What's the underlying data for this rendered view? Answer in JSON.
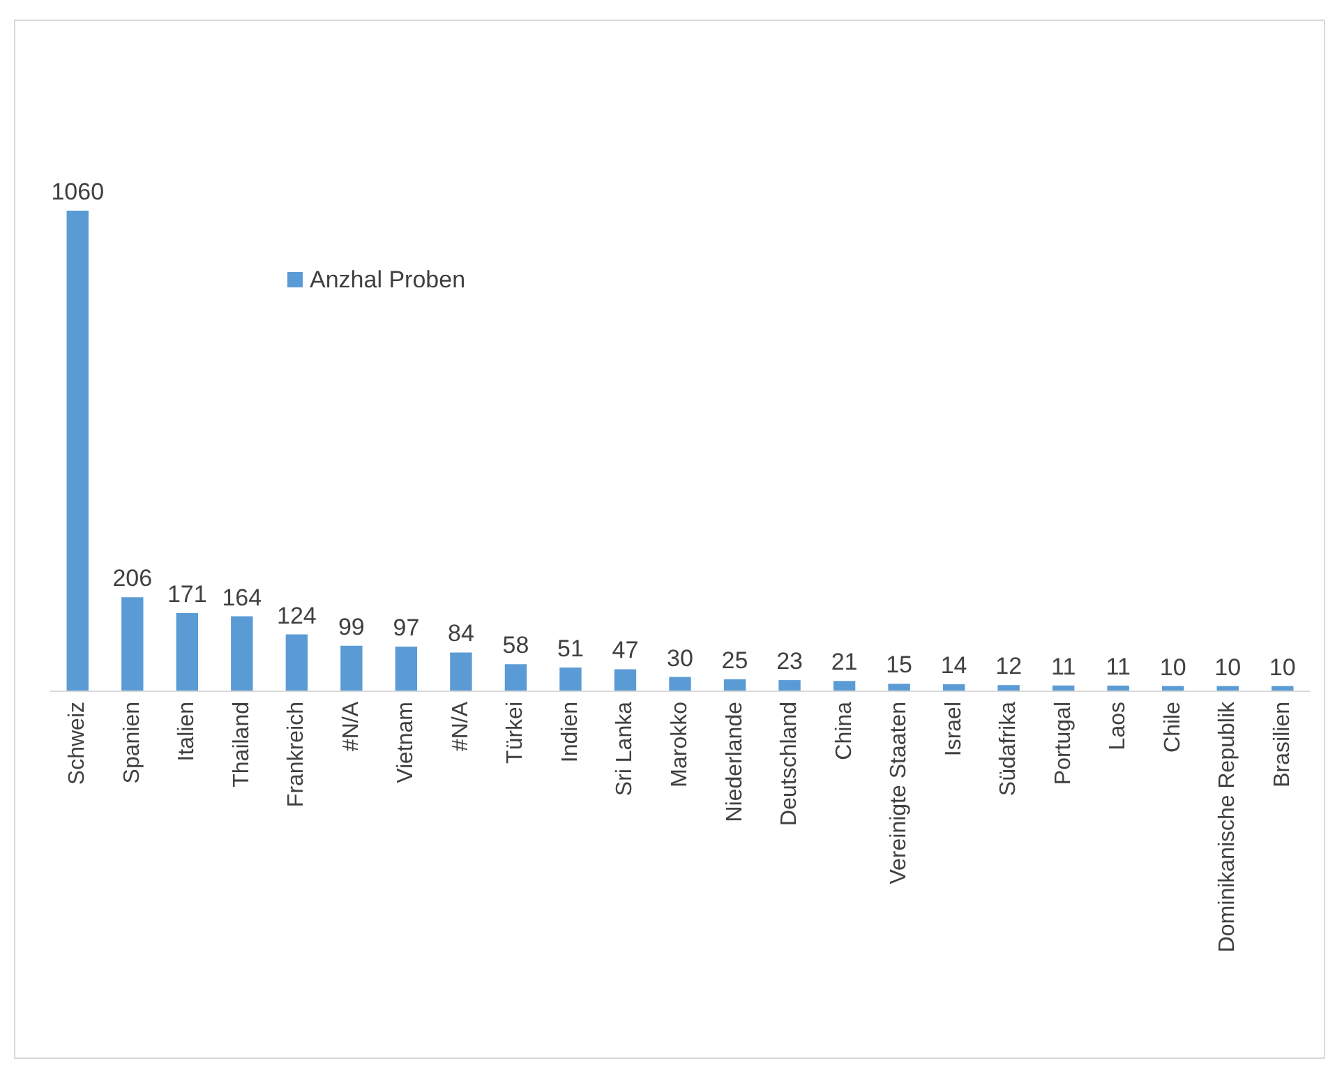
{
  "chart_data": {
    "type": "bar",
    "categories": [
      "Schweiz",
      "Spanien",
      "Italien",
      "Thailand",
      "Frankreich",
      "#N/A",
      "Vietnam",
      "#N/A",
      "Türkei",
      "Indien",
      "Sri Lanka",
      "Marokko",
      "Niederlande",
      "Deutschland",
      "China",
      "Vereinigte Staaten",
      "Israel",
      "Südafrika",
      "Portugal",
      "Laos",
      "Chile",
      "Dominikanische Republik",
      "Brasilien"
    ],
    "series": [
      {
        "name": "Anzhal Proben",
        "color": "#5b9bd5",
        "values": [
          1060,
          206,
          171,
          164,
          124,
          99,
          97,
          84,
          58,
          51,
          47,
          30,
          25,
          23,
          21,
          15,
          14,
          12,
          11,
          11,
          10,
          10,
          10
        ]
      }
    ],
    "data_labels": true,
    "legend": "top left"
  }
}
